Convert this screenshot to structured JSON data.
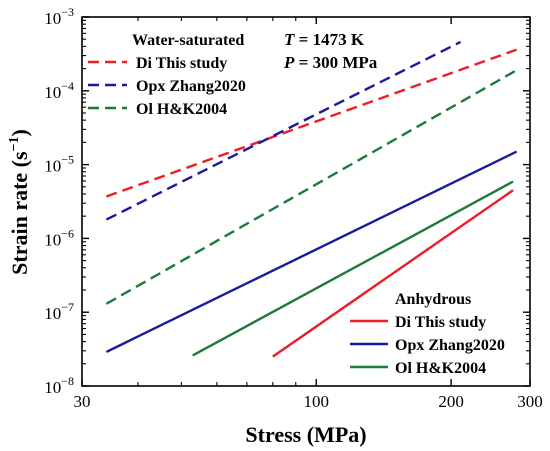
{
  "chart_data": {
    "type": "line",
    "xlabel": "Stress (MPa)",
    "ylabel_main": "Strain rate (s",
    "ylabel_exp": "−1",
    "ylabel_close": ")",
    "x_scale": "log",
    "y_scale": "log",
    "xlim": [
      30,
      300
    ],
    "ylim": [
      1e-08,
      0.001
    ],
    "x_ticks": [
      {
        "value": 30,
        "label": "30"
      },
      {
        "value": 100,
        "label": "100"
      },
      {
        "value": 200,
        "label": "200"
      },
      {
        "value": 300,
        "label": "300"
      }
    ],
    "y_ticks": [
      {
        "value": 1e-08,
        "base": "10",
        "exp": "−8"
      },
      {
        "value": 1e-07,
        "base": "10",
        "exp": "−7"
      },
      {
        "value": 1e-06,
        "base": "10",
        "exp": "−6"
      },
      {
        "value": 1e-05,
        "base": "10",
        "exp": "−5"
      },
      {
        "value": 0.0001,
        "base": "10",
        "exp": "−4"
      },
      {
        "value": 0.001,
        "base": "10",
        "exp": "−3"
      }
    ],
    "conditions": {
      "temp_var": "T",
      "temp_value": " = 1473 K",
      "pressure_var": "P",
      "pressure_value": " = 300 MPa"
    },
    "legends": [
      {
        "title": "Water-saturated",
        "position": "top-left",
        "style": "dashed",
        "entries": [
          "Di This study",
          "Opx Zhang2020",
          "Ol H&K2004"
        ]
      },
      {
        "title": "Anhydrous",
        "position": "bottom-right",
        "style": "solid",
        "entries": [
          "Di This study",
          "Opx Zhang2020",
          "Ol H&K2004"
        ]
      }
    ],
    "series": [
      {
        "name": "Di This study",
        "group": "Water-saturated",
        "style": "dashed",
        "color": "#ee1c25",
        "x": [
          34,
          280
        ],
        "y": [
          3.7e-06,
          0.00036
        ]
      },
      {
        "name": "Opx Zhang2020",
        "group": "Water-saturated",
        "style": "dashed",
        "color": "#1a1a9c",
        "x": [
          34,
          210
        ],
        "y": [
          1.8e-06,
          0.00046
        ]
      },
      {
        "name": "Ol H&K2004",
        "group": "Water-saturated",
        "style": "dashed",
        "color": "#1e7a3a",
        "x": [
          34,
          280
        ],
        "y": [
          1.3e-07,
          0.00019
        ]
      },
      {
        "name": "Di This study",
        "group": "Anhydrous",
        "style": "solid",
        "color": "#ee1c25",
        "x": [
          80,
          275
        ],
        "y": [
          2.5e-08,
          4.5e-06
        ]
      },
      {
        "name": "Opx Zhang2020",
        "group": "Anhydrous",
        "style": "solid",
        "color": "#1a1a9c",
        "x": [
          34,
          280
        ],
        "y": [
          2.9e-08,
          1.5e-05
        ]
      },
      {
        "name": "Ol H&K2004",
        "group": "Anhydrous",
        "style": "solid",
        "color": "#1e7a3a",
        "x": [
          53,
          275
        ],
        "y": [
          2.6e-08,
          5.9e-06
        ]
      }
    ]
  }
}
